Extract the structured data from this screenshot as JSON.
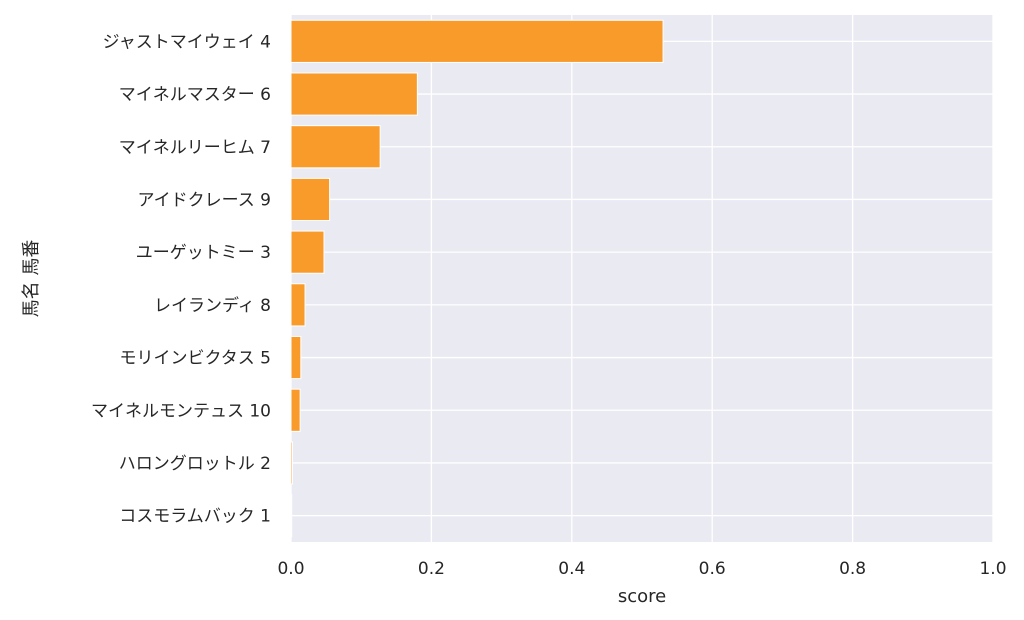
{
  "chart_data": {
    "type": "bar",
    "orientation": "horizontal",
    "xlabel": "score",
    "ylabel": "馬名 馬番",
    "xlim": [
      0,
      1
    ],
    "xticks": [
      "0.0",
      "0.2",
      "0.4",
      "0.6",
      "0.8",
      "1.0"
    ],
    "grid": true,
    "categories": [
      "ジャストマイウェイ 4",
      "マイネルマスター 6",
      "マイネルリーヒム 7",
      "アイドクレース 9",
      "ユーゲットミー 3",
      "レイランディ 8",
      "モリインビクタス 5",
      "マイネルモンテュス 10",
      "ハロングロットル 2",
      "コスモラムバック 1"
    ],
    "values": [
      0.53,
      0.18,
      0.127,
      0.055,
      0.047,
      0.02,
      0.014,
      0.013,
      0.002,
      0.001
    ],
    "colors": {
      "bar": "#f99b2a",
      "bar_edge": "#ffffff",
      "plot_bg": "#eaeaf2",
      "grid": "#ffffff"
    }
  }
}
